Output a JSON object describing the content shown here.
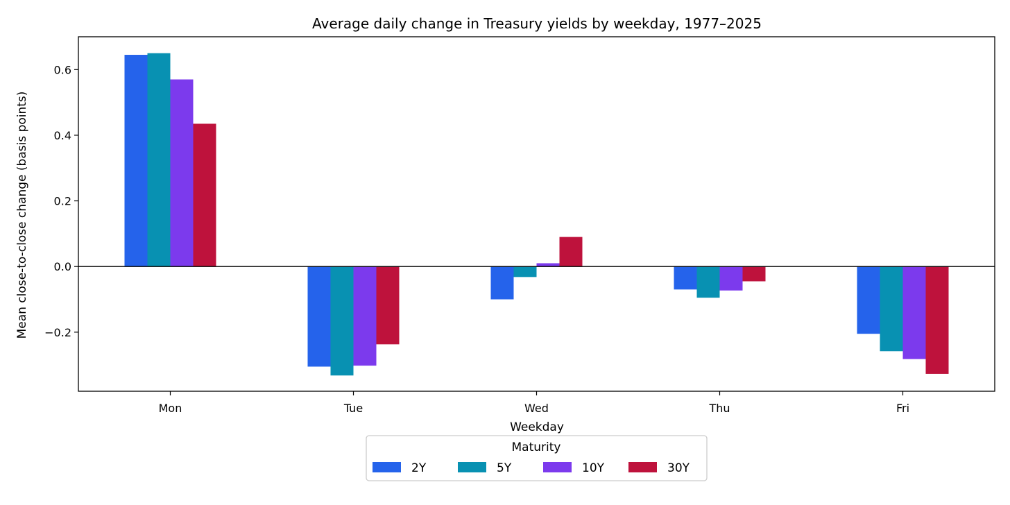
{
  "chart_data": {
    "type": "bar",
    "title": "Average daily change in Treasury yields by weekday, 1977–2025",
    "xlabel": "Weekday",
    "ylabel": "Mean close-to-close change (basis points)",
    "categories": [
      "Mon",
      "Tue",
      "Wed",
      "Thu",
      "Fri"
    ],
    "series": [
      {
        "name": "2Y",
        "color": "#2563eb",
        "values": [
          0.645,
          -0.305,
          -0.1,
          -0.07,
          -0.205
        ]
      },
      {
        "name": "5Y",
        "color": "#0891b2",
        "values": [
          0.65,
          -0.332,
          -0.032,
          -0.095,
          -0.258
        ]
      },
      {
        "name": "10Y",
        "color": "#7c3aed",
        "values": [
          0.57,
          -0.302,
          0.01,
          -0.073,
          -0.282
        ]
      },
      {
        "name": "30Y",
        "color": "#be123c",
        "values": [
          0.435,
          -0.237,
          0.09,
          -0.045,
          -0.327
        ]
      }
    ],
    "ylim": [
      -0.38,
      0.7
    ],
    "yticks": [
      -0.2,
      0.0,
      0.2,
      0.4,
      0.6
    ],
    "ytick_labels": [
      "−0.2",
      "0.0",
      "0.2",
      "0.4",
      "0.6"
    ],
    "zero_line": true,
    "grid": false,
    "legend": {
      "title": "Maturity",
      "placement": "bottom-center",
      "columns": 4
    }
  }
}
